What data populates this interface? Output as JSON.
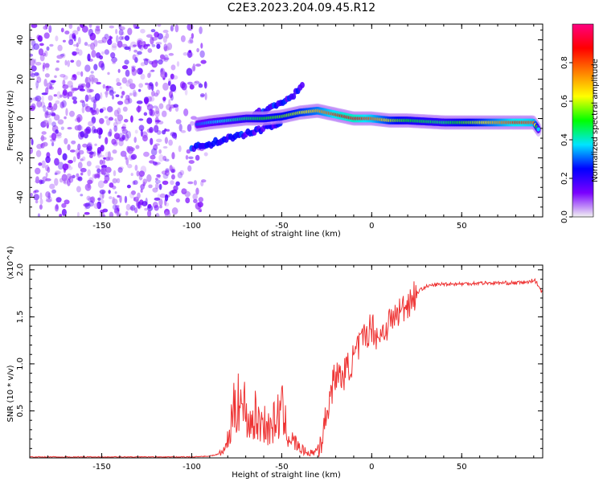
{
  "title": "C2E3.2023.204.09.45.R12",
  "chart_data": [
    {
      "type": "heatmap",
      "xlabel": "Height of straight line (km)",
      "ylabel": "Frequency (Hz)",
      "xlim": [
        -190,
        95
      ],
      "ylim": [
        -50,
        48
      ],
      "xticks": [
        -150,
        -100,
        -50,
        0,
        50
      ],
      "yticks": [
        -40,
        -20,
        0,
        20,
        40
      ],
      "colorbar": {
        "label": "Normalized spectral amplitude",
        "range": [
          0,
          1
        ],
        "ticks": [
          0.0,
          0.2,
          0.4,
          0.6,
          0.8
        ],
        "colors": [
          "#f2f2f2",
          "#7a00ff",
          "#0000ff",
          "#00e5ff",
          "#00ff00",
          "#ffff00",
          "#ff8000",
          "#ff0000",
          "#ff0080"
        ]
      },
      "ridge": {
        "x": [
          -97,
          -90,
          -80,
          -70,
          -60,
          -50,
          -40,
          -30,
          -20,
          -10,
          0,
          10,
          20,
          40,
          60,
          80,
          90,
          93
        ],
        "y": [
          -3,
          -2,
          -1,
          0,
          0,
          1,
          3,
          4,
          2,
          0,
          0,
          -1,
          -1,
          -2,
          -2,
          -2,
          -2,
          -6
        ],
        "amplitude": [
          0.3,
          0.35,
          0.4,
          0.45,
          0.5,
          0.55,
          0.6,
          0.7,
          0.85,
          0.9,
          0.8,
          0.6,
          0.5,
          0.45,
          0.6,
          0.85,
          0.8,
          0.3
        ]
      },
      "secondary_ridges": [
        {
          "x": [
            -100,
            -90,
            -80,
            -70,
            -60,
            -50
          ],
          "y": [
            -15,
            -13,
            -10,
            -8,
            -5,
            -2
          ]
        },
        {
          "x": [
            -65,
            -55,
            -48,
            -42,
            -38
          ],
          "y": [
            2,
            6,
            9,
            13,
            17
          ]
        }
      ],
      "noise_region": {
        "x": [
          -190,
          -100
        ],
        "y": [
          -50,
          48
        ]
      }
    },
    {
      "type": "line",
      "xlabel": "Height of straight line (km)",
      "ylabel": "SNR (10 * v/v)",
      "y_multiplier": "(x10^4)",
      "xlim": [
        -190,
        95
      ],
      "ylim": [
        0,
        2.05
      ],
      "xticks": [
        -150,
        -100,
        -50,
        0,
        50
      ],
      "yticks": [
        0.5,
        1.0,
        1.5,
        2.0
      ],
      "color": "#ee3333",
      "series": [
        {
          "x": [
            -190,
            -150,
            -100,
            -90,
            -85,
            -82,
            -80,
            -78,
            -76,
            -75,
            -74,
            -72,
            -70,
            -68,
            -65,
            -62,
            -60,
            -58,
            -55,
            -52,
            -50,
            -48,
            -45,
            -42,
            -40,
            -38,
            -35,
            -32,
            -30,
            -28,
            -26,
            -25,
            -22,
            -20,
            -18,
            -15,
            -12,
            -10,
            -8,
            -5,
            -2,
            0,
            3,
            5,
            8,
            10,
            13,
            15,
            18,
            20,
            23,
            25,
            28,
            30,
            35,
            40,
            50,
            60,
            70,
            80,
            88,
            90,
            92,
            95
          ],
          "y": [
            0.01,
            0.01,
            0.01,
            0.02,
            0.04,
            0.08,
            0.18,
            0.35,
            0.55,
            0.6,
            0.75,
            0.5,
            0.55,
            0.35,
            0.45,
            0.35,
            0.42,
            0.3,
            0.35,
            0.45,
            0.5,
            0.35,
            0.2,
            0.15,
            0.1,
            0.08,
            0.05,
            0.06,
            0.1,
            0.2,
            0.35,
            0.5,
            0.75,
            0.9,
            0.85,
            0.9,
            1.0,
            1.05,
            1.15,
            1.25,
            1.35,
            1.4,
            1.3,
            1.3,
            1.4,
            1.45,
            1.5,
            1.55,
            1.6,
            1.65,
            1.72,
            1.75,
            1.8,
            1.82,
            1.84,
            1.85,
            1.85,
            1.86,
            1.86,
            1.86,
            1.87,
            1.9,
            1.85,
            1.75
          ]
        }
      ]
    }
  ]
}
